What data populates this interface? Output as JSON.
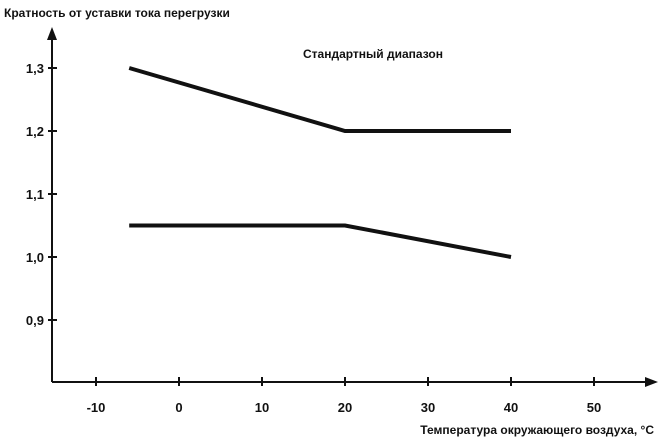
{
  "chart_data": {
    "type": "line",
    "ylabel": "Кратность от уставки тока перегрузки",
    "xlabel": "Температура окружающего воздуха, °С",
    "annotation": "Стандартный диапазон",
    "xlim": [
      -15,
      56
    ],
    "ylim": [
      0.8,
      1.32
    ],
    "xticks": [
      -10,
      0,
      10,
      20,
      30,
      40,
      50
    ],
    "xtick_labels": [
      "-10",
      "0",
      "10",
      "20",
      "30",
      "40",
      "50"
    ],
    "yticks": [
      0.9,
      1.0,
      1.1,
      1.2,
      1.3
    ],
    "ytick_labels": [
      "0,9",
      "1,0",
      "1,1",
      "1,2",
      "1,3"
    ],
    "grid": false,
    "series": [
      {
        "x": [
          -6,
          20,
          40
        ],
        "y": [
          1.3,
          1.2,
          1.2
        ]
      },
      {
        "x": [
          -6,
          20,
          40
        ],
        "y": [
          1.05,
          1.05,
          1.0
        ]
      }
    ]
  }
}
